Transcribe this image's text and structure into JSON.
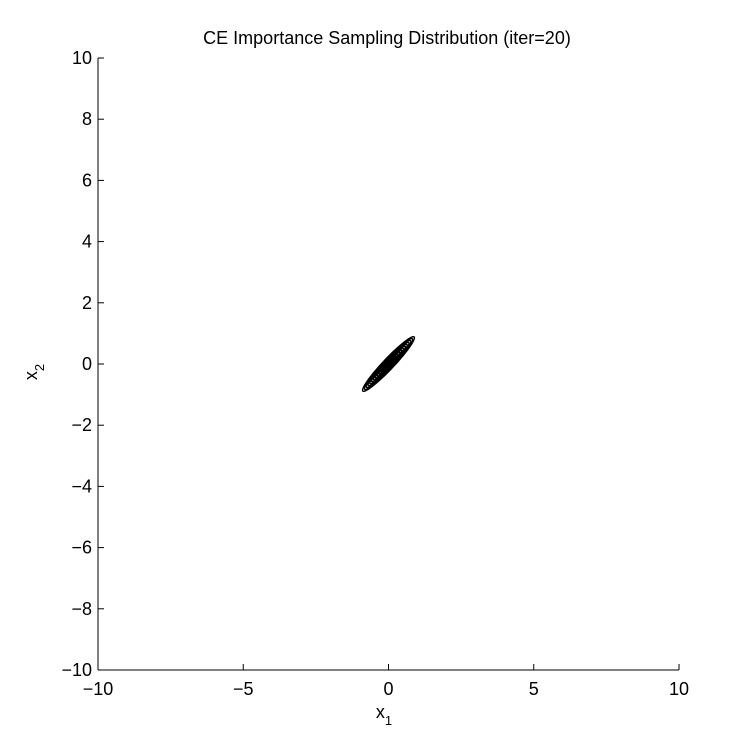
{
  "chart_data": {
    "type": "contour",
    "title": "CE Importance Sampling Distribution (iter=20)",
    "xlabel": {
      "base": "x",
      "sub": "1"
    },
    "ylabel": {
      "base": "x",
      "sub": "2"
    },
    "xlim": [
      -10,
      10
    ],
    "ylim": [
      -10,
      10
    ],
    "xticks": [
      -10,
      -5,
      0,
      5,
      10
    ],
    "yticks": [
      -10,
      -8,
      -6,
      -4,
      -2,
      0,
      2,
      4,
      6,
      8,
      10
    ],
    "xtick_labels": [
      "−10",
      "−5",
      "0",
      "5",
      "10"
    ],
    "ytick_labels": [
      "−10",
      "−8",
      "−6",
      "−4",
      "−2",
      "0",
      "2",
      "4",
      "6",
      "8",
      "10"
    ],
    "grid": false,
    "line_color": "#000000",
    "distribution": {
      "mean": [
        0,
        0
      ],
      "orientation_deg": 45,
      "major_half_length": 1.25,
      "minor_half_length": 0.18
    },
    "contour_levels": [
      1.0,
      0.93,
      0.86,
      0.79,
      0.72,
      0.65,
      0.58,
      0.51,
      0.44,
      0.37,
      0.3,
      0.24,
      0.18,
      0.12,
      0.07,
      0.03
    ]
  }
}
